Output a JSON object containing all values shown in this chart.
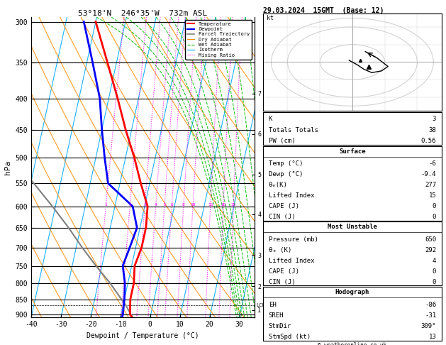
{
  "title_left": "53°18'N  246°35'W  732m ASL",
  "title_right": "29.03.2024  15GMT  (Base: 12)",
  "xlabel": "Dewpoint / Temperature (°C)",
  "ylabel_left": "hPa",
  "pressure_ticks": [
    300,
    350,
    400,
    450,
    500,
    550,
    600,
    650,
    700,
    750,
    800,
    850,
    900
  ],
  "temp_range": [
    -40,
    35
  ],
  "pmin": 295,
  "pmax": 910,
  "mixing_ratio_values": [
    1,
    2,
    3,
    4,
    5,
    6,
    8,
    10,
    15,
    20,
    25
  ],
  "temperature_profile_p": [
    300,
    350,
    400,
    450,
    500,
    550,
    600,
    650,
    700,
    750,
    800,
    850,
    900,
    910
  ],
  "temperature_profile_t": [
    -40,
    -33,
    -27,
    -22,
    -17,
    -13,
    -9,
    -8,
    -8,
    -9,
    -8,
    -8,
    -7,
    -6
  ],
  "dewpoint_profile_p": [
    300,
    350,
    400,
    450,
    500,
    550,
    600,
    650,
    700,
    750,
    800,
    850,
    900,
    910
  ],
  "dewpoint_profile_t": [
    -44,
    -38,
    -33,
    -30,
    -27,
    -24,
    -14,
    -11,
    -12,
    -13,
    -11,
    -10,
    -9.4,
    -9.4
  ],
  "parcel_profile_p": [
    910,
    870,
    850,
    800,
    750,
    700,
    650,
    600,
    550,
    500,
    450,
    400,
    350,
    300
  ],
  "parcel_profile_t": [
    -6,
    -9,
    -11,
    -16,
    -22,
    -28,
    -34,
    -41,
    -49,
    -58,
    -68,
    -80,
    -95,
    -115
  ],
  "lcl_pressure": 870,
  "km_ticks": [
    {
      "p": 393,
      "km": 7
    },
    {
      "p": 457,
      "km": 6
    },
    {
      "p": 532,
      "km": 5
    },
    {
      "p": 618,
      "km": 4
    },
    {
      "p": 720,
      "km": 3
    },
    {
      "p": 810,
      "km": 2
    },
    {
      "p": 885,
      "km": 1
    }
  ],
  "color_temp": "#ff0000",
  "color_dewp": "#0000ff",
  "color_parcel": "#808080",
  "color_dry_adiabat": "#ff8c00",
  "color_wet_adiabat": "#00bb00",
  "color_isotherm": "#00aaff",
  "color_mixing": "#ff00ff",
  "bg_color": "#ffffff",
  "info_K": 3,
  "info_TT": 38,
  "info_PW": 0.56,
  "surf_temp": -6,
  "surf_dewp": -9.4,
  "surf_theta_e": 277,
  "surf_LI": 15,
  "surf_CAPE": 0,
  "surf_CIN": 0,
  "mu_pressure": 650,
  "mu_theta_e": 292,
  "mu_LI": 4,
  "mu_CAPE": 0,
  "mu_CIN": 0,
  "hodo_EH": -86,
  "hodo_SREH": -31,
  "hodo_StmDir": "309°",
  "hodo_StmSpd": 13,
  "copyright": "© weatheronline.co.uk"
}
